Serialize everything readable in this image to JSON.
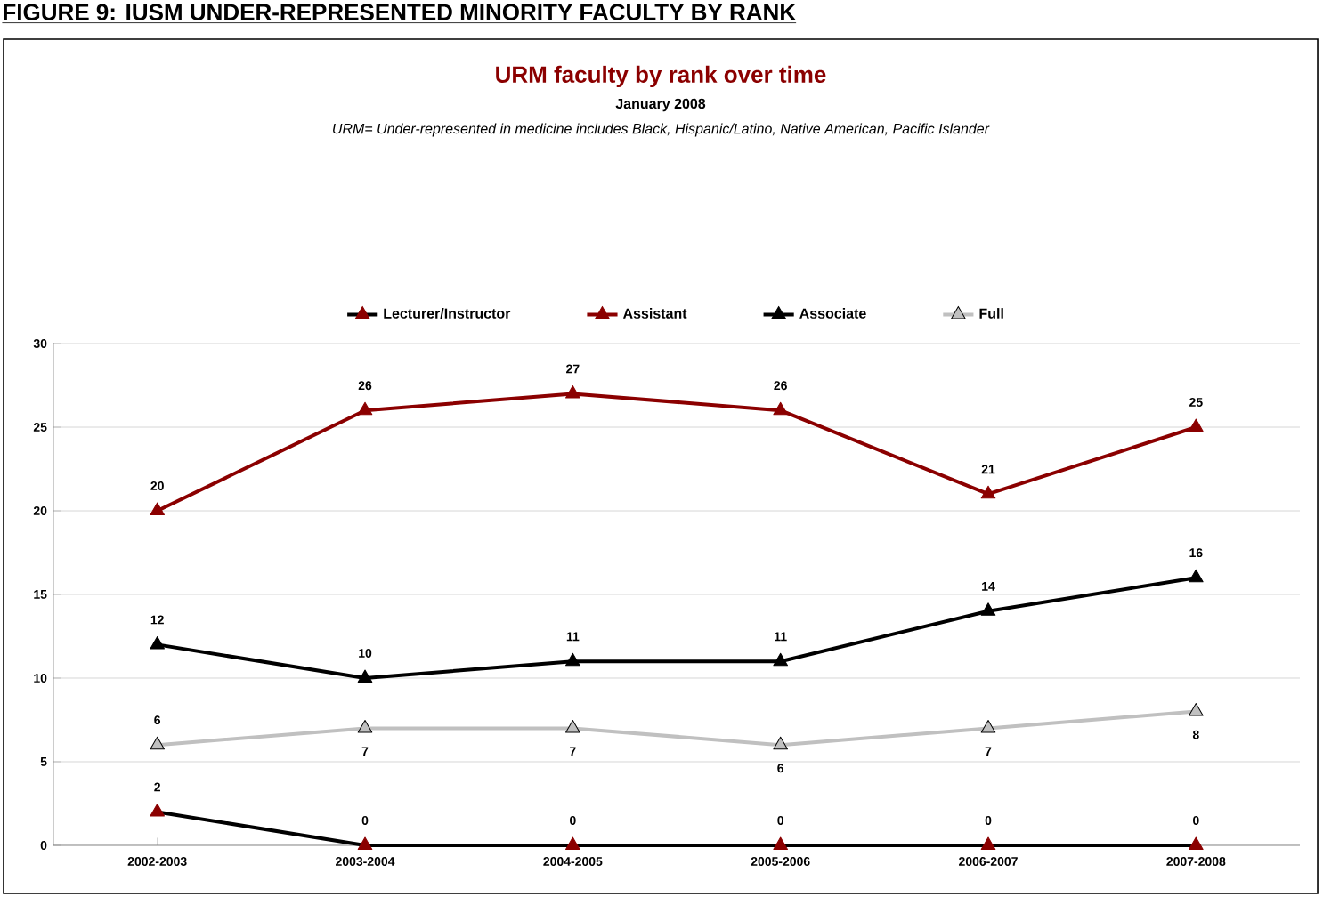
{
  "chart_data": {
    "type": "line",
    "title": "URM faculty by rank over time",
    "subtitle": "January 2008",
    "annotations": [
      "FIGURE 9: IUSM UNDER-REPRESENTED MINORITY FACULTY BY RANK",
      "URM= Under-represented in medicine includes Black, Hispanic/Latino, Native American, Pacific Islander"
    ],
    "categories": [
      "2002-2003",
      "2003-2004",
      "2004-2005",
      "2005-2006",
      "2006-2007",
      "2007-2008"
    ],
    "series": [
      {
        "name": "Lecturer/Instructor",
        "color": "#000000",
        "colors": [
          "#8b0000",
          "#8b0000",
          "#8b0000",
          "#8b0000",
          "#8b0000",
          "#8b0000"
        ],
        "values": [
          2,
          0,
          0,
          0,
          0,
          0
        ]
      },
      {
        "name": "Assistant",
        "color": "#8b0000",
        "values": [
          20,
          26,
          27,
          26,
          21,
          25
        ]
      },
      {
        "name": "Associate",
        "color": "#000000",
        "values": [
          12,
          10,
          11,
          11,
          14,
          16
        ]
      },
      {
        "name": "Full",
        "color": "#c0c0c0",
        "values": [
          6,
          7,
          7,
          6,
          7,
          8
        ]
      }
    ],
    "ylim": [
      0,
      30
    ],
    "yticks": [
      0,
      5,
      10,
      15,
      20,
      25,
      30
    ],
    "grid": "y",
    "legend": "top",
    "marker": "triangle",
    "data_labels": true
  }
}
